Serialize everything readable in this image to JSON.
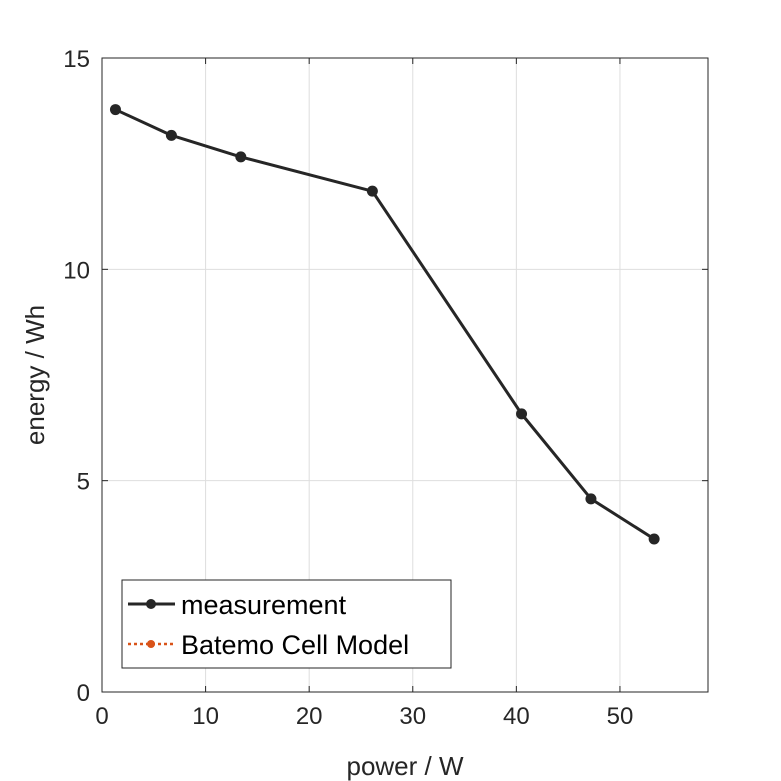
{
  "chart_data": {
    "type": "line",
    "xlabel": "power / W",
    "ylabel": "energy / Wh",
    "xlim": [
      0,
      58.5
    ],
    "ylim": [
      0,
      15
    ],
    "xticks": [
      0,
      10,
      20,
      30,
      40,
      50
    ],
    "yticks": [
      0,
      5,
      10,
      15
    ],
    "grid": true,
    "legend_position": "bottom-left",
    "series": [
      {
        "name": "measurement",
        "color": "#262626",
        "line_style": "solid",
        "marker": "circle",
        "x": [
          1.3,
          6.7,
          13.4,
          26.1,
          40.5,
          47.2,
          53.3
        ],
        "y": [
          13.78,
          13.17,
          12.66,
          11.85,
          6.58,
          4.57,
          3.62
        ]
      },
      {
        "name": "Batemo Cell Model",
        "color": "#d95319",
        "line_style": "dotted",
        "marker": "circle",
        "x": [],
        "y": []
      }
    ]
  }
}
